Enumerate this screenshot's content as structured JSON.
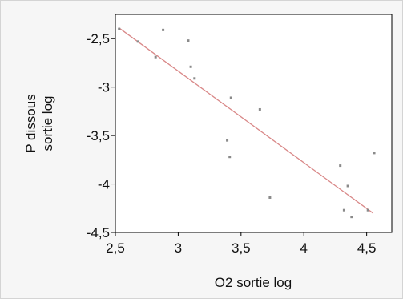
{
  "chart_data": {
    "type": "scatter",
    "xlabel": "O2 sortie log",
    "ylabel_lines": [
      "P dissous",
      "sortie log"
    ],
    "xlim": [
      2.5,
      4.7
    ],
    "ylim": [
      -4.5,
      -2.25
    ],
    "xticks": [
      2.5,
      3,
      3.5,
      4,
      4.5
    ],
    "xtick_labels": [
      "2,5",
      "3",
      "3,5",
      "4",
      "4,5"
    ],
    "yticks": [
      -2.5,
      -3,
      -3.5,
      -4,
      -4.5
    ],
    "ytick_labels": [
      "-2,5",
      "-3",
      "-3,5",
      "-4",
      "-4,5"
    ],
    "grid": false,
    "points": [
      {
        "x": 2.53,
        "y": -2.4
      },
      {
        "x": 2.68,
        "y": -2.53
      },
      {
        "x": 2.82,
        "y": -2.69
      },
      {
        "x": 2.88,
        "y": -2.41
      },
      {
        "x": 3.08,
        "y": -2.52
      },
      {
        "x": 3.1,
        "y": -2.79
      },
      {
        "x": 3.13,
        "y": -2.91
      },
      {
        "x": 3.39,
        "y": -3.55
      },
      {
        "x": 3.41,
        "y": -3.72
      },
      {
        "x": 3.42,
        "y": -3.11
      },
      {
        "x": 3.65,
        "y": -3.23
      },
      {
        "x": 3.73,
        "y": -4.14
      },
      {
        "x": 4.29,
        "y": -3.81
      },
      {
        "x": 4.32,
        "y": -4.27
      },
      {
        "x": 4.35,
        "y": -4.02
      },
      {
        "x": 4.38,
        "y": -4.34
      },
      {
        "x": 4.51,
        "y": -4.27
      },
      {
        "x": 4.56,
        "y": -3.68
      }
    ],
    "fit_line": {
      "x1": 2.53,
      "y1": -2.39,
      "x2": 4.55,
      "y2": -4.3
    },
    "colors": {
      "fit_line": "#d98888",
      "points": "#8a8a8a",
      "plot_bg": "#ffffff",
      "frame_bg": "#f6f6f6",
      "axis": "#000000"
    }
  }
}
